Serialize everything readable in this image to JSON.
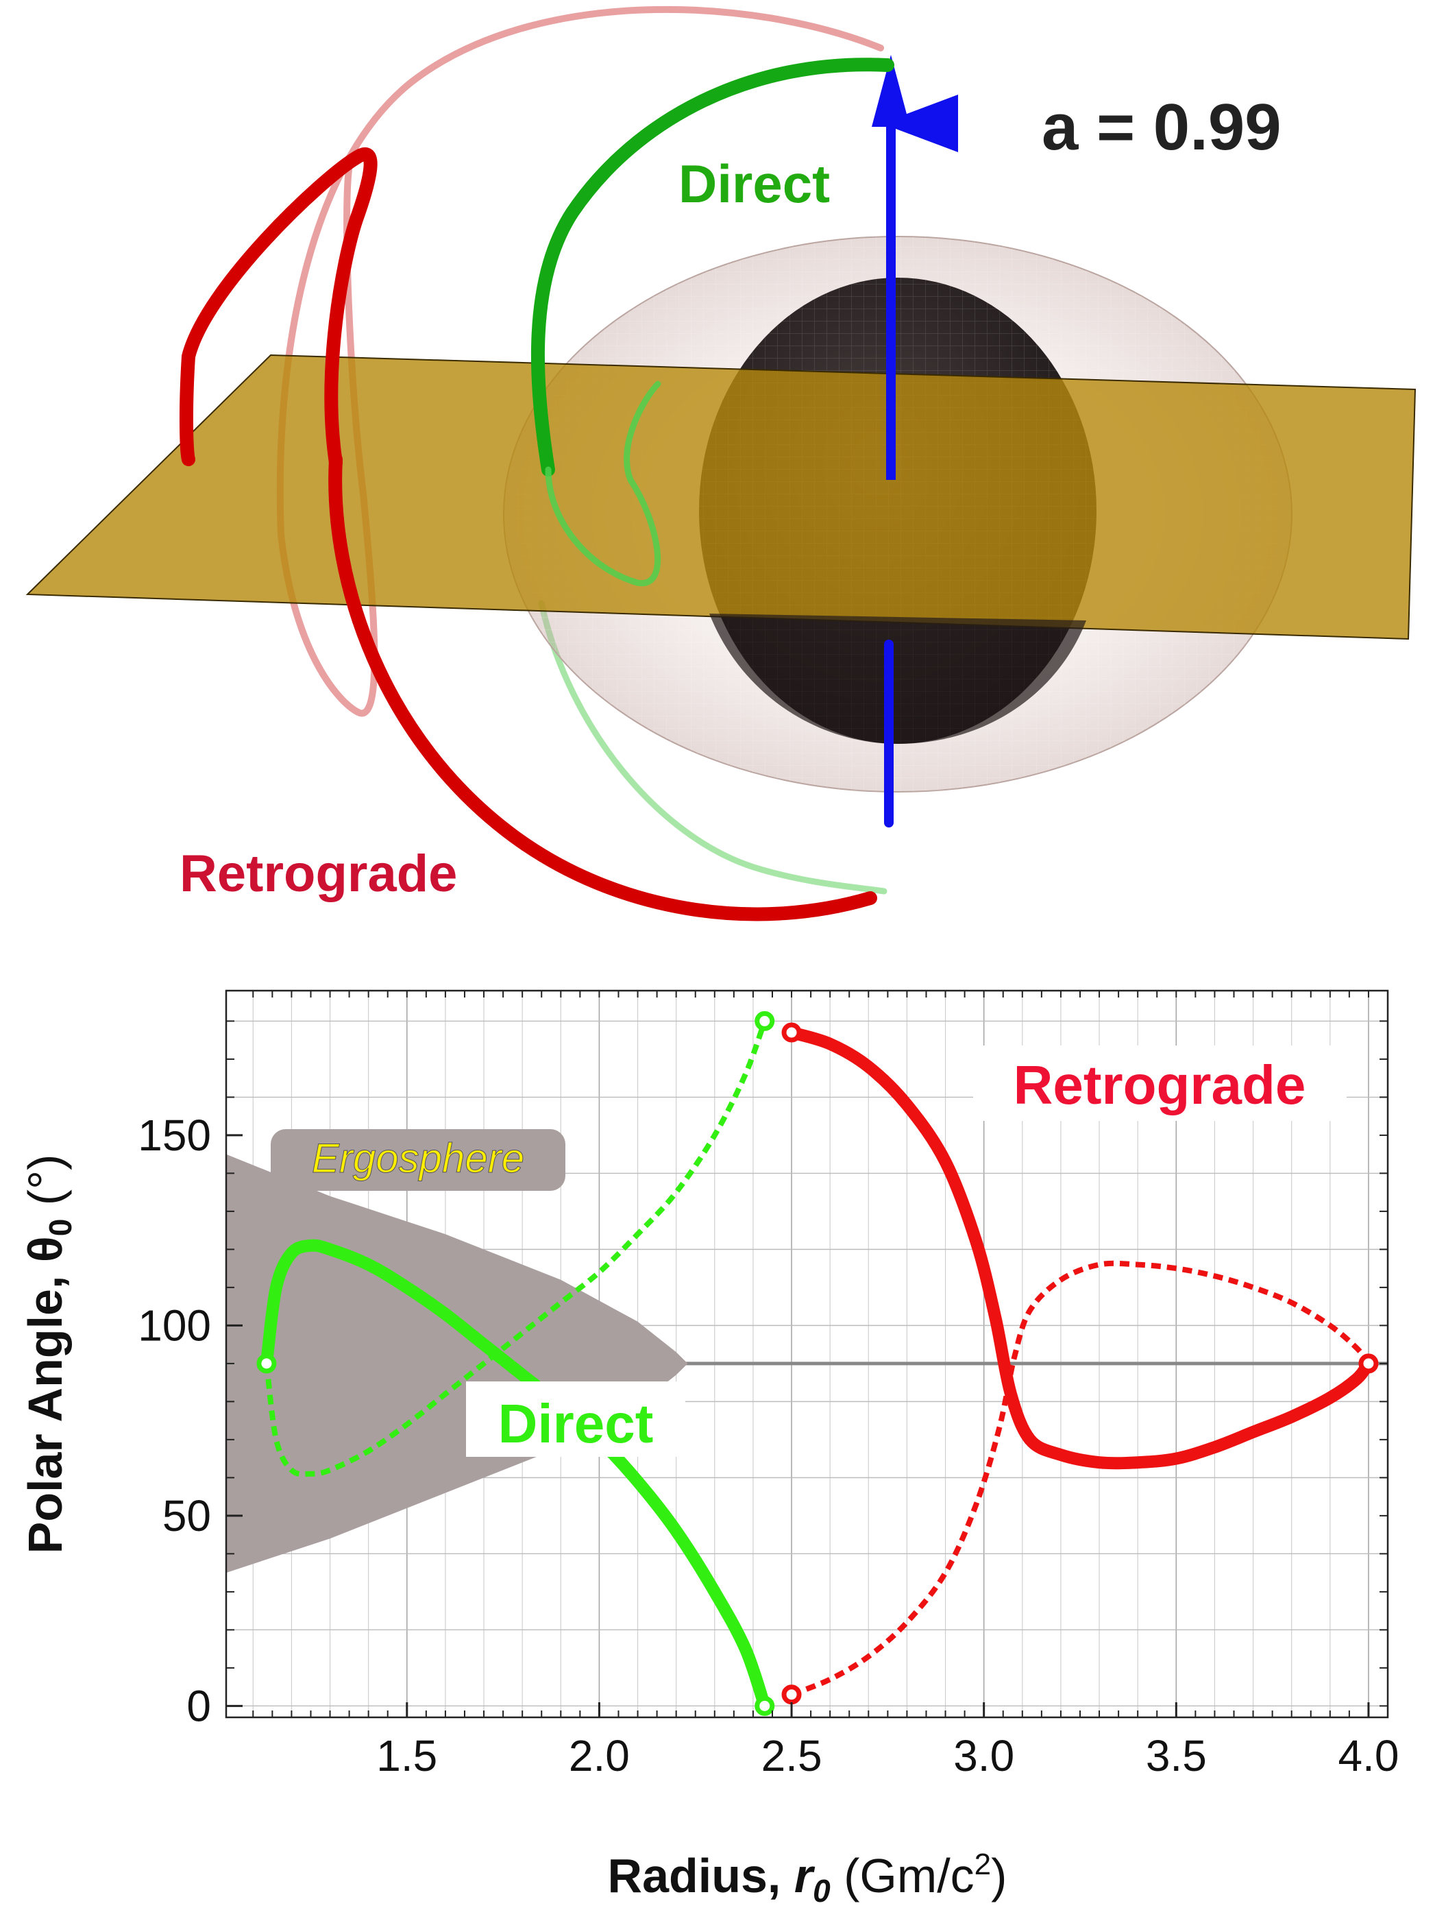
{
  "top_panel": {
    "spin_label": "a = 0.99",
    "direct_label": "Direct",
    "retrograde_label": "Retrograde"
  },
  "chart_data": {
    "type": "line",
    "xlabel_main": "Radius, ",
    "xlabel_symbol": "r",
    "xlabel_sub": "0",
    "xlabel_unit": " (Gm/c",
    "xlabel_unit_sup": "2",
    "xlabel_unit_end": ")",
    "ylabel_main": "Polar Angle, θ",
    "ylabel_sub": "0",
    "ylabel_unit": " (°)",
    "xlim": [
      1.03,
      4.05
    ],
    "ylim": [
      -3,
      188
    ],
    "x_ticks": [
      1.5,
      2.0,
      2.5,
      3.0,
      3.5,
      4.0
    ],
    "x_tick_labels": [
      "1.5",
      "2.0",
      "2.5",
      "3.0",
      "3.5",
      "4.0"
    ],
    "y_ticks": [
      0,
      50,
      100,
      150
    ],
    "y_tick_labels": [
      "0",
      "50",
      "100",
      "150"
    ],
    "grid": true,
    "reference_line_y": 90,
    "ergosphere_label": "Ergosphere",
    "ergosphere_region": {
      "upper": [
        [
          1.03,
          145
        ],
        [
          1.3,
          134
        ],
        [
          1.6,
          124
        ],
        [
          1.9,
          112
        ],
        [
          2.1,
          101
        ],
        [
          2.2,
          93
        ],
        [
          2.23,
          90
        ]
      ],
      "lower": [
        [
          2.23,
          90
        ],
        [
          2.2,
          87
        ],
        [
          2.1,
          79
        ],
        [
          1.9,
          68
        ],
        [
          1.6,
          56
        ],
        [
          1.3,
          44
        ],
        [
          1.03,
          35
        ]
      ]
    },
    "annotations": {
      "direct": "Direct",
      "retrograde": "Retrograde"
    },
    "colors": {
      "direct": "#33ee11",
      "retrograde": "#ee1111",
      "ergosphere": "#aa9f9f",
      "ergosphere_text": "#ffee00",
      "ref_line": "#888888"
    },
    "series": [
      {
        "key": "direct-solid",
        "style": "solid",
        "color": "#33ee11",
        "points": [
          [
            1.135,
            90
          ],
          [
            1.16,
            110
          ],
          [
            1.2,
            119
          ],
          [
            1.25,
            121
          ],
          [
            1.3,
            120
          ],
          [
            1.4,
            116
          ],
          [
            1.5,
            110
          ],
          [
            1.6,
            103
          ],
          [
            1.7,
            95
          ],
          [
            1.8,
            87
          ],
          [
            1.9,
            79
          ],
          [
            2.0,
            70
          ],
          [
            2.1,
            59
          ],
          [
            2.2,
            46
          ],
          [
            2.3,
            30
          ],
          [
            2.38,
            15
          ],
          [
            2.43,
            0
          ]
        ]
      },
      {
        "key": "direct-dashed",
        "style": "dashed",
        "color": "#33ee11",
        "points": [
          [
            1.135,
            90
          ],
          [
            1.16,
            70
          ],
          [
            1.2,
            62
          ],
          [
            1.25,
            61
          ],
          [
            1.3,
            62
          ],
          [
            1.4,
            67
          ],
          [
            1.5,
            74
          ],
          [
            1.6,
            82
          ],
          [
            1.7,
            90
          ],
          [
            1.8,
            98
          ],
          [
            1.9,
            106
          ],
          [
            2.0,
            114
          ],
          [
            2.1,
            124
          ],
          [
            2.2,
            135
          ],
          [
            2.3,
            150
          ],
          [
            2.38,
            166
          ],
          [
            2.43,
            180
          ]
        ]
      },
      {
        "key": "retro-solid",
        "style": "solid",
        "color": "#ee1111",
        "points": [
          [
            2.5,
            177
          ],
          [
            2.6,
            174
          ],
          [
            2.7,
            168
          ],
          [
            2.8,
            158
          ],
          [
            2.9,
            143
          ],
          [
            2.98,
            122
          ],
          [
            3.03,
            102
          ],
          [
            3.07,
            82
          ],
          [
            3.12,
            70
          ],
          [
            3.2,
            66
          ],
          [
            3.3,
            64
          ],
          [
            3.4,
            64
          ],
          [
            3.5,
            65
          ],
          [
            3.6,
            68
          ],
          [
            3.7,
            72
          ],
          [
            3.8,
            76
          ],
          [
            3.9,
            81
          ],
          [
            3.97,
            86
          ],
          [
            4.0,
            90
          ]
        ]
      },
      {
        "key": "retro-dashed",
        "style": "dashed",
        "color": "#ee1111",
        "points": [
          [
            2.5,
            3
          ],
          [
            2.6,
            7
          ],
          [
            2.7,
            13
          ],
          [
            2.8,
            22
          ],
          [
            2.9,
            35
          ],
          [
            2.98,
            53
          ],
          [
            3.04,
            73
          ],
          [
            3.08,
            92
          ],
          [
            3.12,
            104
          ],
          [
            3.2,
            112
          ],
          [
            3.3,
            116
          ],
          [
            3.4,
            116
          ],
          [
            3.5,
            115
          ],
          [
            3.6,
            113
          ],
          [
            3.7,
            110
          ],
          [
            3.8,
            106
          ],
          [
            3.9,
            100
          ],
          [
            3.97,
            94
          ],
          [
            4.0,
            90
          ]
        ]
      }
    ],
    "endpoint_markers": [
      {
        "x": 1.135,
        "y": 90,
        "color": "#33ee11"
      },
      {
        "x": 2.43,
        "y": 0,
        "color": "#33ee11"
      },
      {
        "x": 2.43,
        "y": 180,
        "color": "#33ee11"
      },
      {
        "x": 2.5,
        "y": 177,
        "color": "#ee1111"
      },
      {
        "x": 2.5,
        "y": 3,
        "color": "#ee1111"
      },
      {
        "x": 4.0,
        "y": 90,
        "color": "#ee1111"
      }
    ]
  }
}
